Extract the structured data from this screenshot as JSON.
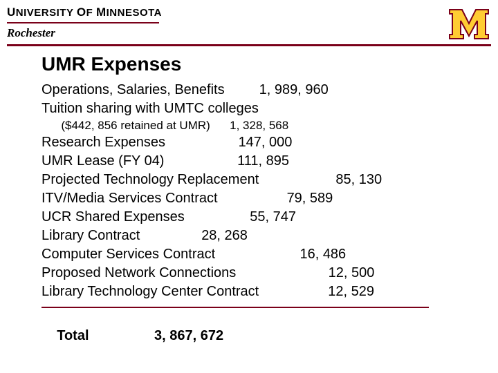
{
  "colors": {
    "maroon": "#7a0019",
    "gold": "#ffcc33",
    "black": "#000000",
    "background": "#ffffff"
  },
  "header": {
    "university": "University of Minnesota",
    "campus": "Rochester",
    "logo_alt": "M"
  },
  "title": "UMR Expenses",
  "lines": [
    {
      "label": "Operations, Salaries, Benefits",
      "value": "1, 989, 960",
      "indent_value": 39
    },
    {
      "label": "Tuition sharing with UMTC colleges",
      "value": "",
      "indent_value": 0
    },
    {
      "label": "($442, 856 retained at UMR)",
      "value": "1, 328, 568",
      "sub": true,
      "indent_value": 39
    },
    {
      "label": "Research Expenses",
      "value": "147, 000",
      "indent_value": 36
    },
    {
      "label": "UMR Lease (FY 04)",
      "value": "111, 895",
      "indent_value": 36
    },
    {
      "label": "Projected Technology Replacement",
      "value": "85, 130",
      "indent_value": 52
    },
    {
      "label": "ITV/Media Services Contract",
      "value": "79, 589",
      "indent_value": 45
    },
    {
      "label": "UCR Shared Expenses",
      "value": "55, 747",
      "indent_value": 36
    },
    {
      "label": "Library Contract",
      "value": "28, 268",
      "indent_value": 32
    },
    {
      "label": "Computer Services Contract",
      "value": "16, 486",
      "indent_value": 48
    },
    {
      "label": "Proposed Network Connections",
      "value": "12, 500",
      "indent_value": 52
    },
    {
      "label": "Library Technology Center Contract",
      "value": "12, 529",
      "indent_value": 52
    }
  ],
  "total": {
    "label": "Total",
    "value": "3, 867, 672",
    "indent_value": 22
  }
}
